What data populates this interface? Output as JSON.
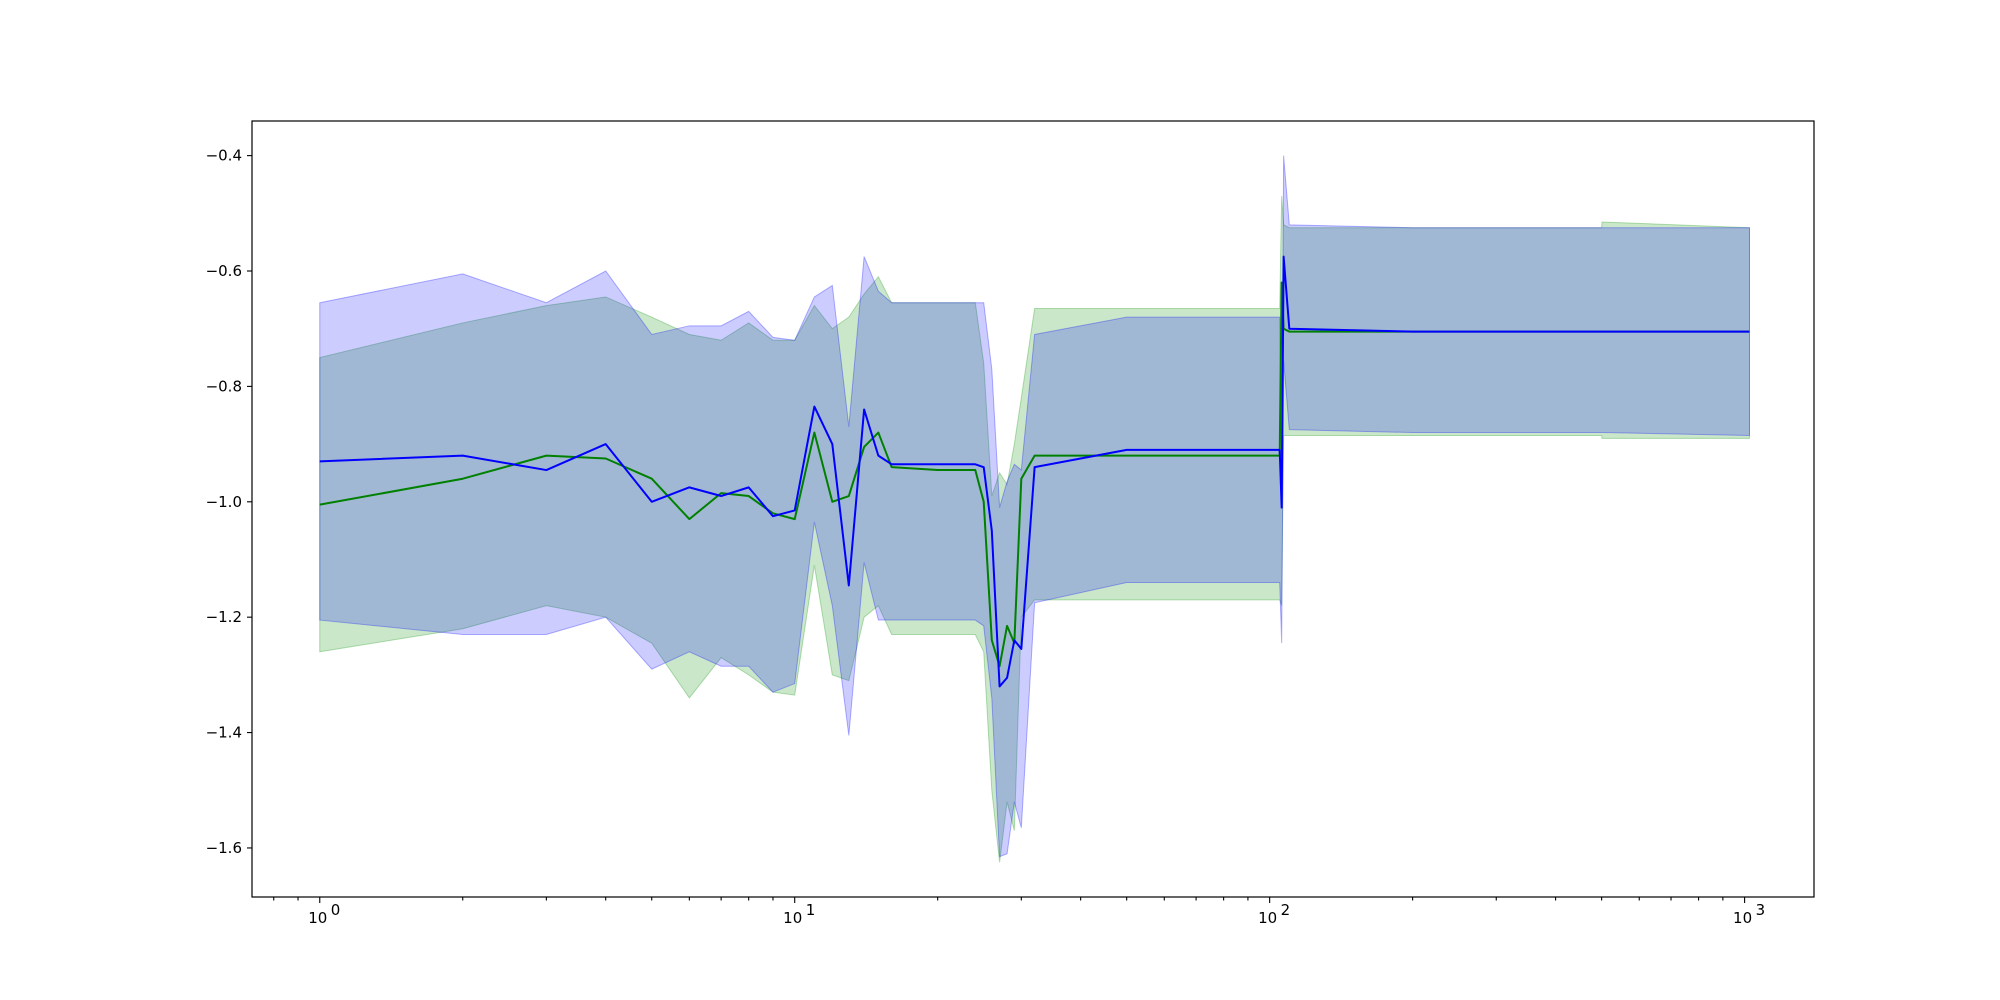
{
  "chart_data": {
    "type": "line",
    "title": "",
    "xlabel": "",
    "ylabel": "",
    "x_scale": "log",
    "xlim": [
      0.72,
      1400
    ],
    "ylim": [
      -1.685,
      -0.34
    ],
    "grid": false,
    "x_major_ticks": [
      1,
      10,
      100,
      1000
    ],
    "x_tick_labels": [
      {
        "base": "10",
        "exp": "0"
      },
      {
        "base": "10",
        "exp": "1"
      },
      {
        "base": "10",
        "exp": "2"
      },
      {
        "base": "10",
        "exp": "3"
      }
    ],
    "y_ticks": [
      -1.6,
      -1.4,
      -1.2,
      -1.0,
      -0.8,
      -0.6,
      -0.4
    ],
    "y_tick_labels": [
      "−1.6",
      "−1.4",
      "−1.2",
      "−1.0",
      "−0.8",
      "−0.6",
      "−0.4"
    ],
    "series": [
      {
        "color": "#008000",
        "band_color": "#2ca02c",
        "band_opacity": 0.25,
        "x": [
          1,
          2,
          3,
          4,
          5,
          6,
          7,
          8,
          9,
          10,
          11,
          12,
          13,
          14,
          15,
          16,
          20,
          24,
          25,
          26,
          27,
          28,
          29,
          30,
          32,
          50,
          104,
          105,
          106,
          107,
          110,
          200,
          500,
          501,
          1024
        ],
        "y": [
          -1.005,
          -0.96,
          -0.92,
          -0.925,
          -0.96,
          -1.03,
          -0.985,
          -0.99,
          -1.02,
          -1.03,
          -0.88,
          -1.0,
          -0.99,
          -0.905,
          -0.88,
          -0.94,
          -0.945,
          -0.945,
          -1.0,
          -1.24,
          -1.285,
          -1.215,
          -1.245,
          -0.96,
          -0.92,
          -0.92,
          -0.92,
          -0.92,
          -0.62,
          -0.7,
          -0.705,
          -0.705,
          -0.705,
          -0.705,
          -0.705
        ],
        "upper": [
          -0.75,
          -0.69,
          -0.66,
          -0.645,
          -0.68,
          -0.71,
          -0.72,
          -0.69,
          -0.72,
          -0.72,
          -0.66,
          -0.7,
          -0.68,
          -0.64,
          -0.61,
          -0.655,
          -0.655,
          -0.655,
          -0.76,
          -0.99,
          -0.95,
          -0.97,
          -0.9,
          -0.82,
          -0.665,
          -0.665,
          -0.665,
          -0.665,
          -0.47,
          -0.52,
          -0.525,
          -0.525,
          -0.525,
          -0.515,
          -0.525
        ],
        "lower": [
          -1.26,
          -1.22,
          -1.18,
          -1.2,
          -1.245,
          -1.34,
          -1.27,
          -1.3,
          -1.33,
          -1.335,
          -1.11,
          -1.3,
          -1.31,
          -1.2,
          -1.18,
          -1.23,
          -1.23,
          -1.23,
          -1.26,
          -1.5,
          -1.625,
          -1.52,
          -1.57,
          -1.2,
          -1.17,
          -1.17,
          -1.17,
          -1.17,
          -1.18,
          -0.885,
          -0.885,
          -0.885,
          -0.885,
          -0.89,
          -0.89
        ]
      },
      {
        "color": "#0000ff",
        "band_color": "#0000ff",
        "band_opacity": 0.2,
        "x": [
          1,
          2,
          3,
          4,
          5,
          6,
          7,
          8,
          9,
          10,
          11,
          12,
          13,
          14,
          15,
          16,
          20,
          24,
          25,
          26,
          27,
          28,
          29,
          30,
          32,
          50,
          104,
          105,
          106,
          107,
          110,
          200,
          500,
          501,
          1024
        ],
        "y": [
          -0.93,
          -0.92,
          -0.945,
          -0.9,
          -1.0,
          -0.975,
          -0.99,
          -0.975,
          -1.025,
          -1.015,
          -0.835,
          -0.9,
          -1.145,
          -0.84,
          -0.92,
          -0.935,
          -0.935,
          -0.935,
          -0.94,
          -1.05,
          -1.32,
          -1.305,
          -1.24,
          -1.255,
          -0.94,
          -0.91,
          -0.91,
          -0.91,
          -1.01,
          -0.575,
          -0.7,
          -0.705,
          -0.705,
          -0.705,
          -0.705
        ],
        "upper": [
          -0.655,
          -0.605,
          -0.655,
          -0.6,
          -0.71,
          -0.695,
          -0.695,
          -0.67,
          -0.715,
          -0.72,
          -0.645,
          -0.625,
          -0.87,
          -0.575,
          -0.635,
          -0.655,
          -0.655,
          -0.655,
          -0.655,
          -0.77,
          -1.01,
          -0.965,
          -0.935,
          -0.945,
          -0.71,
          -0.68,
          -0.68,
          -0.68,
          -0.97,
          -0.4,
          -0.52,
          -0.525,
          -0.525,
          -0.525,
          -0.525
        ],
        "lower": [
          -1.205,
          -1.23,
          -1.23,
          -1.2,
          -1.29,
          -1.26,
          -1.285,
          -1.285,
          -1.33,
          -1.315,
          -1.035,
          -1.18,
          -1.405,
          -1.105,
          -1.205,
          -1.205,
          -1.205,
          -1.205,
          -1.215,
          -1.34,
          -1.615,
          -1.61,
          -1.52,
          -1.565,
          -1.175,
          -1.14,
          -1.14,
          -1.14,
          -1.245,
          -0.755,
          -0.875,
          -0.88,
          -0.88,
          -0.88,
          -0.885
        ]
      }
    ]
  }
}
